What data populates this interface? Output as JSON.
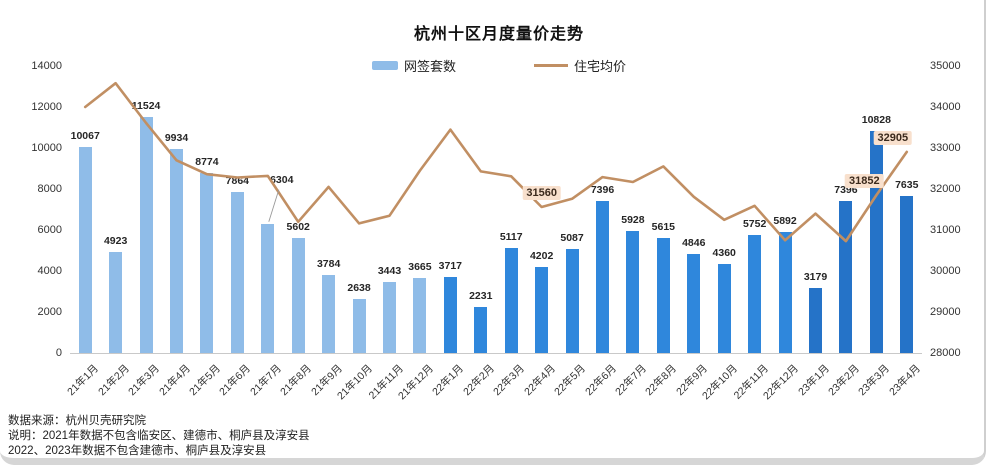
{
  "title": "杭州十区月度量价走势",
  "legend": {
    "bars_label": "网签套数",
    "line_label": "住宅均价"
  },
  "colors": {
    "bar_2021": "#8FBCE8",
    "bar_2022": "#2F87DC",
    "bar_2023": "#2573C8",
    "line": "#C18F63",
    "line_label_bg": "#F8E0CD",
    "axis_text": "#333333"
  },
  "chart_data": {
    "type": "bar",
    "subtype": "bar-line-combo",
    "title": "杭州十区月度量价走势",
    "grid": false,
    "legend_position": "top",
    "categories": [
      "21年1月",
      "21年2月",
      "21年3月",
      "21年4月",
      "21年5月",
      "21年6月",
      "21年7月",
      "21年8月",
      "21年9月",
      "21年10月",
      "21年11月",
      "21年12月",
      "22年1月",
      "22年2月",
      "22年3月",
      "22年4月",
      "22年5月",
      "22年6月",
      "22年7月",
      "22年8月",
      "22年9月",
      "22年10月",
      "22年11月",
      "22年12月",
      "23年1月",
      "23年2月",
      "23年3月",
      "23年4月"
    ],
    "series": [
      {
        "name": "网签套数",
        "type": "bar",
        "axis": "left",
        "values": [
          10067,
          4923,
          11524,
          9934,
          8774,
          7864,
          6304,
          5602,
          3784,
          2638,
          3443,
          3665,
          3717,
          2231,
          5117,
          4202,
          5087,
          7396,
          5928,
          5615,
          4846,
          4360,
          5752,
          5892,
          3179,
          7396,
          10828,
          7635
        ],
        "color_by_year_prefix": {
          "21": "#8FBCE8",
          "22": "#2F87DC",
          "23": "#2573C8"
        },
        "callout_label_index": 6
      },
      {
        "name": "住宅均价",
        "type": "line",
        "axis": "right",
        "color": "#C18F63",
        "values": [
          34000,
          34580,
          33610,
          32700,
          32360,
          32280,
          32320,
          31200,
          32050,
          31160,
          31350,
          32450,
          33450,
          32430,
          32310,
          31560,
          31760,
          32290,
          32170,
          32550,
          31810,
          31250,
          31590,
          30750,
          31400,
          30730,
          31852,
          32905
        ],
        "labeled_points": [
          {
            "index": 15,
            "value": 31560
          },
          {
            "index": 26,
            "value": 31852
          },
          {
            "index": 27,
            "value": 32905
          }
        ]
      }
    ],
    "left_axis": {
      "min": 0,
      "max": 14000,
      "step": 2000
    },
    "right_axis": {
      "min": 28000,
      "max": 35000,
      "step": 1000
    }
  },
  "footer": {
    "source": "数据来源：杭州贝壳研究院",
    "note1": "说明：2021年数据不包含临安区、建德市、桐庐县及淳安县",
    "note2": "2022、2023年数据不包含建德市、桐庐县及淳安县"
  }
}
